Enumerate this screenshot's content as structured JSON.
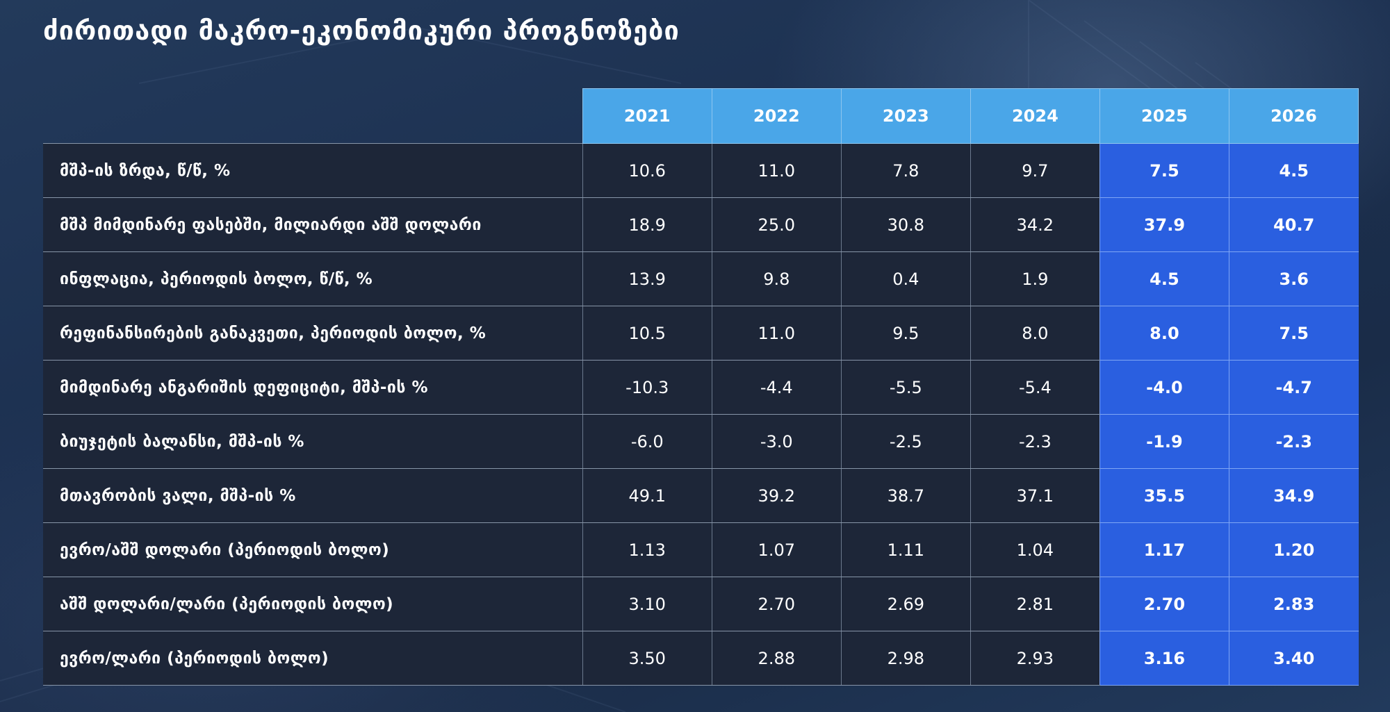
{
  "title": "ძირითადი მაკრო-ეკონომიკური პროგნოზები",
  "colors": {
    "header_bg": "#4aa6e8",
    "forecast_bg": "#2a5fe0",
    "row_bg": "#1d2638",
    "page_bg": "#1b2d49"
  },
  "table": {
    "years": [
      "2021",
      "2022",
      "2023",
      "2024",
      "2025",
      "2026"
    ],
    "forecast_years": [
      "2025",
      "2026"
    ],
    "rows": [
      {
        "label": "მშპ-ის ზრდა, წ/წ, %",
        "values": [
          "10.6",
          "11.0",
          "7.8",
          "9.7",
          "7.5",
          "4.5"
        ]
      },
      {
        "label": "მშპ მიმდინარე ფასებში,  მილიარდი აშშ დოლარი",
        "values": [
          "18.9",
          "25.0",
          "30.8",
          "34.2",
          "37.9",
          "40.7"
        ]
      },
      {
        "label": "ინფლაცია, პერიოდის ბოლო, წ/წ, %",
        "values": [
          "13.9",
          "9.8",
          "0.4",
          "1.9",
          "4.5",
          "3.6"
        ]
      },
      {
        "label": "რეფინანსირების განაკვეთი, პერიოდის ბოლო, %",
        "values": [
          "10.5",
          "11.0",
          "9.5",
          "8.0",
          "8.0",
          "7.5"
        ]
      },
      {
        "label": "მიმდინარე ანგარიშის დეფიციტი, მშპ-ის %",
        "values": [
          "-10.3",
          "-4.4",
          "-5.5",
          "-5.4",
          "-4.0",
          "-4.7"
        ]
      },
      {
        "label": "ბიუჯეტის ბალანსი, მშპ-ის %",
        "values": [
          "-6.0",
          "-3.0",
          "-2.5",
          "-2.3",
          "-1.9",
          "-2.3"
        ]
      },
      {
        "label": "მთავრობის ვალი, მშპ-ის %",
        "values": [
          "49.1",
          "39.2",
          "38.7",
          "37.1",
          "35.5",
          "34.9"
        ]
      },
      {
        "label": "ევრო/აშშ დოლარი (პერიოდის ბოლო)",
        "values": [
          "1.13",
          "1.07",
          "1.11",
          "1.04",
          "1.17",
          "1.20"
        ]
      },
      {
        "label": "აშშ დოლარი/ლარი (პერიოდის ბოლო)",
        "values": [
          "3.10",
          "2.70",
          "2.69",
          "2.81",
          "2.70",
          "2.83"
        ]
      },
      {
        "label": "ევრო/ლარი (პერიოდის ბოლო)",
        "values": [
          "3.50",
          "2.88",
          "2.98",
          "2.93",
          "3.16",
          "3.40"
        ]
      }
    ]
  }
}
